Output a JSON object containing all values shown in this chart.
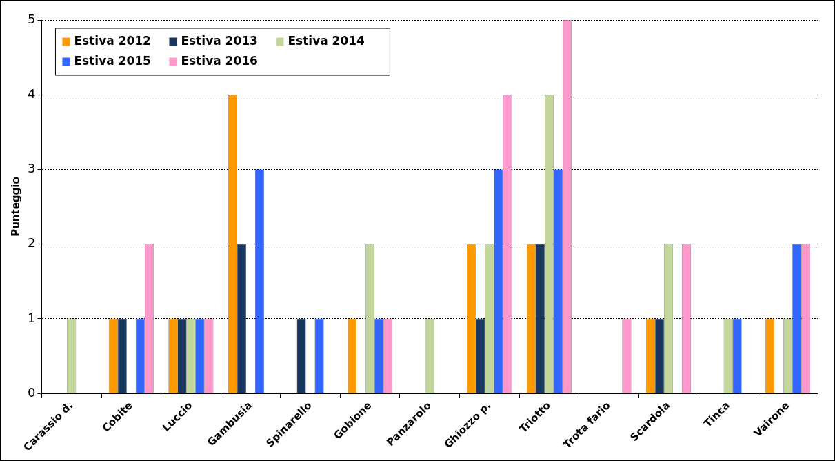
{
  "chart_data": {
    "type": "bar",
    "ylabel": "Punteggio",
    "categories": [
      "Carassio d.",
      "Cobite",
      "Luccio",
      "Gambusia",
      "Spinarello",
      "Gobione",
      "Panzarolo",
      "Ghiozzo p.",
      "Triotto",
      "Trota fario",
      "Scardola",
      "Tinca",
      "Vairone"
    ],
    "series": [
      {
        "name": "Estiva 2012",
        "color": "#ff9900",
        "values": [
          0,
          1,
          1,
          4,
          0,
          1,
          0,
          2,
          2,
          0,
          1,
          0,
          1
        ]
      },
      {
        "name": "Estiva 2013",
        "color": "#17375e",
        "values": [
          0,
          1,
          1,
          2,
          1,
          0,
          0,
          1,
          2,
          0,
          1,
          0,
          0
        ]
      },
      {
        "name": "Estiva 2014",
        "color": "#c3d69b",
        "values": [
          1,
          0,
          1,
          0,
          0,
          2,
          1,
          2,
          4,
          0,
          2,
          1,
          1
        ]
      },
      {
        "name": "Estiva 2015",
        "color": "#3366ff",
        "values": [
          0,
          1,
          1,
          3,
          1,
          1,
          0,
          3,
          3,
          0,
          0,
          1,
          2
        ]
      },
      {
        "name": "Estiva 2016",
        "color": "#ff99cc",
        "values": [
          0,
          2,
          1,
          0,
          0,
          1,
          0,
          4,
          5,
          1,
          2,
          0,
          2
        ]
      }
    ],
    "ylim": [
      0,
      5
    ],
    "yticks": [
      0,
      1,
      2,
      3,
      4,
      5
    ],
    "grid": "y",
    "legend": "top left"
  }
}
